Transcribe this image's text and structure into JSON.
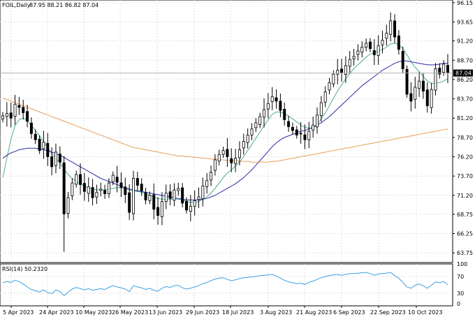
{
  "header": {
    "symbol": "FOIL,Daily",
    "ohlc": "87.95 88.21 86.82 87.04"
  },
  "rsi_label": "RSI(14) 50.2320",
  "colors": {
    "candle": "#000000",
    "ma_fast": "#4caf8a",
    "ma_mid": "#2a2aa8",
    "ma_slow": "#e8a05a",
    "rsi": "#3aa0e0",
    "grid": "#c8c8c8",
    "price_tag_bg": "#000000",
    "price_tag_text": "#ffffff"
  },
  "chart_data": [
    {
      "type": "candlestick",
      "title": "FOIL,Daily",
      "ylim": [
        62.5,
        96.5
      ],
      "y_ticks": [
        "96.15",
        "93.65",
        "91.20",
        "88.70",
        "86.20",
        "83.70",
        "81.20",
        "78.70",
        "76.20",
        "73.70",
        "71.20",
        "68.75",
        "66.25",
        "63.75"
      ],
      "x_ticks": [
        "5 Apr 2023",
        "24 Apr 2023",
        "10 May 2023",
        "26 May 2023",
        "13 Jun 2023",
        "29 Jun 2023",
        "18 Jul 2023",
        "3 Aug 2023",
        "21 Aug 2023",
        "6 Sep 2023",
        "22 Sep 2023",
        "10 Oct 2023"
      ],
      "last_price": "87.04",
      "series_close": [
        81.5,
        81.8,
        81.2,
        83.0,
        82.6,
        81.9,
        80.8,
        79.2,
        78.4,
        77.0,
        78.1,
        76.2,
        74.9,
        76.8,
        75.5,
        68.8,
        70.9,
        72.8,
        73.9,
        72.6,
        71.7,
        72.3,
        70.9,
        71.6,
        72.0,
        71.4,
        72.8,
        73.8,
        72.9,
        72.2,
        71.3,
        69.0,
        73.4,
        72.5,
        71.8,
        70.6,
        71.2,
        69.4,
        68.6,
        70.4,
        71.5,
        70.8,
        71.9,
        72.1,
        70.2,
        69.3,
        69.8,
        70.5,
        71.0,
        72.4,
        73.1,
        74.2,
        75.8,
        76.5,
        77.0,
        76.2,
        75.4,
        76.0,
        77.1,
        78.2,
        79.0,
        79.8,
        80.6,
        81.4,
        82.3,
        83.1,
        84.0,
        83.4,
        82.2,
        81.0,
        80.1,
        79.6,
        79.0,
        79.2,
        78.4,
        79.5,
        80.3,
        81.6,
        83.2,
        84.6,
        85.8,
        86.9,
        87.4,
        87.1,
        88.0,
        88.8,
        89.2,
        89.9,
        90.4,
        90.9,
        90.2,
        89.4,
        90.6,
        91.3,
        92.2,
        93.8,
        91.7,
        90.1,
        87.6,
        84.3,
        83.4,
        85.2,
        86.0,
        84.7,
        82.8,
        84.9,
        87.6,
        86.9,
        88.2,
        87.04
      ],
      "series": [
        {
          "name": "MA fast",
          "values": [
            73.5,
            76.0,
            78.5,
            80.2,
            81.0,
            81.2,
            80.9,
            80.3,
            79.6,
            78.9,
            78.2,
            77.4,
            76.6,
            76.0,
            75.4,
            74.6,
            73.9,
            73.4,
            73.0,
            72.7,
            72.4,
            72.2,
            72.0,
            71.9,
            71.9,
            71.9,
            72.0,
            72.1,
            72.2,
            72.2,
            72.1,
            71.9,
            71.8,
            71.7,
            71.6,
            71.4,
            71.2,
            71.0,
            70.8,
            70.7,
            70.7,
            70.7,
            70.7,
            70.7,
            70.6,
            70.4,
            70.3,
            70.3,
            70.4,
            70.7,
            71.0,
            71.5,
            72.1,
            72.8,
            73.5,
            74.1,
            74.5,
            75.0,
            75.5,
            76.2,
            77.0,
            77.8,
            78.6,
            79.4,
            80.2,
            81.0,
            81.7,
            82.0,
            82.0,
            81.8,
            81.5,
            81.1,
            80.7,
            80.3,
            80.0,
            79.9,
            80.0,
            80.4,
            81.1,
            81.9,
            82.8,
            83.8,
            84.7,
            85.5,
            86.3,
            87.0,
            87.6,
            88.1,
            88.6,
            89.1,
            89.5,
            89.7,
            89.9,
            90.1,
            90.4,
            90.8,
            90.9,
            90.7,
            90.2,
            89.4,
            88.5,
            87.8,
            87.2,
            86.6,
            86.0,
            85.7,
            85.7,
            85.8,
            86.0,
            86.3
          ]
        },
        {
          "name": "MA mid",
          "values": [
            76.0,
            76.4,
            76.7,
            76.9,
            77.1,
            77.2,
            77.3,
            77.3,
            77.3,
            77.2,
            77.1,
            77.0,
            76.8,
            76.6,
            76.4,
            76.1,
            75.8,
            75.5,
            75.2,
            74.9,
            74.6,
            74.3,
            74.0,
            73.7,
            73.4,
            73.2,
            73.0,
            72.8,
            72.6,
            72.4,
            72.2,
            72.0,
            71.9,
            71.8,
            71.7,
            71.6,
            71.5,
            71.4,
            71.3,
            71.2,
            71.1,
            71.0,
            70.9,
            70.8,
            70.7,
            70.6,
            70.6,
            70.6,
            70.6,
            70.7,
            70.8,
            71.0,
            71.2,
            71.5,
            71.8,
            72.1,
            72.4,
            72.7,
            73.1,
            73.5,
            74.0,
            74.5,
            75.1,
            75.7,
            76.3,
            76.9,
            77.5,
            78.0,
            78.4,
            78.7,
            78.9,
            79.1,
            79.3,
            79.5,
            79.6,
            79.8,
            80.0,
            80.3,
            80.6,
            81.0,
            81.4,
            81.9,
            82.4,
            82.9,
            83.4,
            83.9,
            84.4,
            84.9,
            85.4,
            85.8,
            86.2,
            86.6,
            87.0,
            87.4,
            87.7,
            88.0,
            88.3,
            88.5,
            88.6,
            88.6,
            88.5,
            88.4,
            88.3,
            88.2,
            88.1,
            88.1,
            88.1,
            88.2,
            88.3,
            88.3
          ]
        },
        {
          "name": "MA slow",
          "values": [
            83.8,
            83.6,
            83.4,
            83.2,
            83.0,
            82.8,
            82.6,
            82.4,
            82.2,
            82.0,
            81.8,
            81.6,
            81.4,
            81.2,
            81.0,
            80.8,
            80.6,
            80.4,
            80.2,
            80.0,
            79.8,
            79.6,
            79.4,
            79.2,
            79.0,
            78.8,
            78.6,
            78.4,
            78.2,
            78.0,
            77.8,
            77.6,
            77.4,
            77.3,
            77.2,
            77.1,
            77.0,
            76.9,
            76.8,
            76.7,
            76.6,
            76.5,
            76.4,
            76.3,
            76.3,
            76.2,
            76.2,
            76.1,
            76.1,
            76.0,
            76.0,
            75.9,
            75.9,
            75.8,
            75.8,
            75.7,
            75.7,
            75.7,
            75.6,
            75.6,
            75.6,
            75.5,
            75.5,
            75.5,
            75.5,
            75.5,
            75.6,
            75.6,
            75.7,
            75.8,
            75.9,
            76.0,
            76.1,
            76.2,
            76.3,
            76.4,
            76.5,
            76.6,
            76.7,
            76.8,
            76.9,
            77.0,
            77.1,
            77.2,
            77.3,
            77.4,
            77.5,
            77.6,
            77.7,
            77.8,
            77.9,
            78.0,
            78.1,
            78.2,
            78.3,
            78.4,
            78.5,
            78.6,
            78.7,
            78.8,
            78.9,
            79.0,
            79.1,
            79.2,
            79.3,
            79.4,
            79.5,
            79.6,
            79.7,
            79.8
          ]
        }
      ]
    },
    {
      "type": "line",
      "title": "RSI(14) 50.2320",
      "ylim": [
        0,
        100
      ],
      "y_ticks": [
        "100",
        "70",
        "30",
        "0"
      ],
      "values": [
        55,
        58,
        56,
        61,
        58,
        52,
        45,
        39,
        36,
        33,
        38,
        32,
        29,
        38,
        34,
        24,
        33,
        40,
        44,
        41,
        38,
        41,
        37,
        39,
        41,
        39,
        44,
        48,
        45,
        43,
        40,
        34,
        48,
        45,
        43,
        39,
        42,
        37,
        35,
        42,
        46,
        44,
        48,
        49,
        43,
        40,
        42,
        45,
        48,
        53,
        56,
        60,
        64,
        66,
        67,
        63,
        60,
        62,
        65,
        67,
        68,
        69,
        70,
        72,
        73,
        74,
        75,
        71,
        66,
        61,
        57,
        55,
        53,
        54,
        51,
        56,
        59,
        63,
        67,
        70,
        72,
        74,
        75,
        73,
        75,
        77,
        77,
        78,
        79,
        80,
        77,
        73,
        76,
        77,
        78,
        80,
        72,
        66,
        56,
        45,
        42,
        49,
        52,
        48,
        42,
        49,
        57,
        55,
        58,
        50.23
      ]
    }
  ]
}
